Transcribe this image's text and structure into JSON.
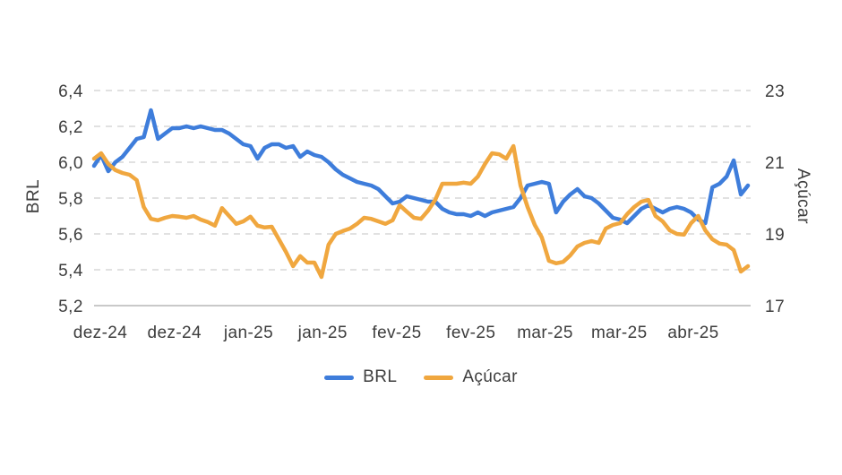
{
  "page": {
    "background": "#ffffff",
    "text_color": "#3d3d3d",
    "grid_color": "#d7d7d7",
    "axis_line_color": "#c9c9c9"
  },
  "chart_data": {
    "type": "line",
    "title": "",
    "grid": "dashed-horizontal",
    "legend_position": "bottom",
    "x_labels": [
      "dez-24",
      "dez-24",
      "jan-25",
      "jan-25",
      "fev-25",
      "fev-25",
      "mar-25",
      "mar-25",
      "abr-25"
    ],
    "left_axis": {
      "label": "BRL",
      "range": [
        5.2,
        6.4
      ],
      "tick_values": [
        5.2,
        5.4,
        5.6,
        5.8,
        6.0,
        6.2,
        6.4
      ],
      "tick_labels": [
        "5,2",
        "5,4",
        "5,6",
        "5,8",
        "6,0",
        "6,2",
        "6,4"
      ]
    },
    "right_axis": {
      "label": "Açúcar",
      "range": [
        17,
        23
      ],
      "tick_values": [
        17,
        19,
        21,
        23
      ],
      "tick_labels": [
        "17",
        "19",
        "21",
        "23"
      ]
    },
    "series": [
      {
        "name": "BRL",
        "axis": "left",
        "color": "#3E7DDB",
        "values": [
          5.98,
          6.04,
          5.95,
          6.0,
          6.03,
          6.08,
          6.13,
          6.14,
          6.29,
          6.13,
          6.16,
          6.19,
          6.19,
          6.2,
          6.19,
          6.2,
          6.19,
          6.18,
          6.18,
          6.16,
          6.13,
          6.1,
          6.09,
          6.02,
          6.08,
          6.1,
          6.1,
          6.08,
          6.09,
          6.03,
          6.06,
          6.04,
          6.03,
          6.0,
          5.96,
          5.93,
          5.91,
          5.89,
          5.88,
          5.87,
          5.85,
          5.81,
          5.77,
          5.78,
          5.81,
          5.8,
          5.79,
          5.78,
          5.78,
          5.74,
          5.72,
          5.71,
          5.71,
          5.7,
          5.72,
          5.7,
          5.72,
          5.73,
          5.74,
          5.75,
          5.8,
          5.87,
          5.88,
          5.89,
          5.88,
          5.72,
          5.78,
          5.82,
          5.85,
          5.81,
          5.8,
          5.77,
          5.73,
          5.69,
          5.68,
          5.66,
          5.7,
          5.74,
          5.76,
          5.74,
          5.72,
          5.74,
          5.75,
          5.74,
          5.72,
          5.68,
          5.66,
          5.86,
          5.88,
          5.92,
          6.01,
          5.82,
          5.87
        ]
      },
      {
        "name": "Açúcar",
        "axis": "right",
        "color": "#F0A73F",
        "values": [
          21.1,
          21.25,
          20.95,
          20.78,
          20.7,
          20.65,
          20.5,
          19.75,
          19.42,
          19.38,
          19.45,
          19.5,
          19.48,
          19.45,
          19.5,
          19.4,
          19.33,
          19.23,
          19.72,
          19.5,
          19.28,
          19.35,
          19.48,
          19.23,
          19.18,
          19.2,
          18.85,
          18.5,
          18.1,
          18.38,
          18.2,
          18.2,
          17.8,
          18.7,
          19.0,
          19.08,
          19.15,
          19.28,
          19.45,
          19.42,
          19.35,
          19.28,
          19.38,
          19.8,
          19.62,
          19.45,
          19.42,
          19.65,
          19.95,
          20.4,
          20.4,
          20.4,
          20.43,
          20.4,
          20.6,
          20.95,
          21.25,
          21.22,
          21.1,
          21.45,
          20.35,
          19.75,
          19.25,
          18.9,
          18.25,
          18.18,
          18.22,
          18.4,
          18.65,
          18.75,
          18.8,
          18.75,
          19.15,
          19.25,
          19.3,
          19.55,
          19.75,
          19.9,
          19.95,
          19.5,
          19.35,
          19.1,
          19.0,
          18.98,
          19.3,
          19.5,
          19.1,
          18.85,
          18.73,
          18.7,
          18.55,
          17.95,
          18.1
        ]
      }
    ]
  }
}
